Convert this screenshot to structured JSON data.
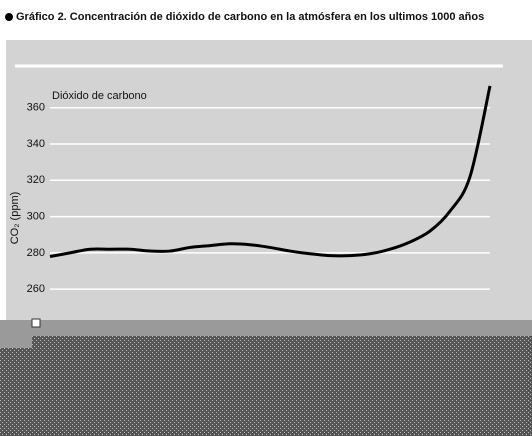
{
  "chart_data": {
    "type": "line",
    "title": "Gráfico 2. Concentración de dióxido de carbono en la atmósfera en los ultimos 1000 años",
    "y_label": "CO₂ (ppm)",
    "categories": [
      null,
      null,
      null,
      null,
      null,
      null,
      null,
      null,
      null,
      null,
      null,
      null,
      null,
      null,
      null,
      null,
      null,
      null,
      null,
      null,
      null,
      null,
      null
    ],
    "series": [
      {
        "name": "Dióxido de carbono",
        "color": "#000000",
        "values": [
          278,
          280,
          282,
          282,
          282,
          281,
          281,
          283,
          284,
          285,
          284.5,
          283,
          281,
          279.5,
          278.5,
          278.5,
          279.5,
          282,
          286,
          292,
          303,
          322,
          372
        ]
      }
    ],
    "ylim": [
      243,
      383
    ],
    "yticks": [
      260,
      280,
      300,
      320,
      340,
      360
    ],
    "grid": true
  }
}
